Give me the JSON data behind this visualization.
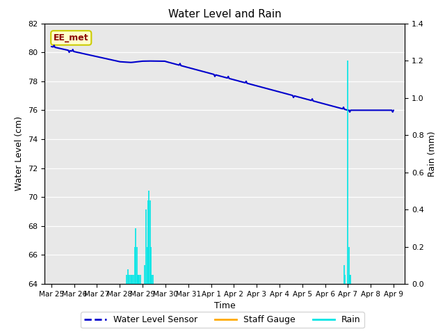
{
  "title": "Water Level and Rain",
  "xlabel": "Time",
  "ylabel_left": "Water Level (cm)",
  "ylabel_right": "Rain (mm)",
  "fig_bg_color": "#ffffff",
  "plot_bg_color": "#e8e8e8",
  "annotation_text": "EE_met",
  "annotation_bg": "#ffffcc",
  "annotation_border": "#cccc00",
  "annotation_text_color": "#8b0000",
  "water_level_color": "#0000cc",
  "staff_gauge_color": "#ffaa00",
  "rain_color": "#00e5e5",
  "ylim_left": [
    64,
    82
  ],
  "ylim_right": [
    0.0,
    1.4
  ],
  "yticks_left": [
    64,
    66,
    68,
    70,
    72,
    74,
    76,
    78,
    80,
    82
  ],
  "yticks_right": [
    0.0,
    0.2,
    0.4,
    0.6,
    0.8,
    1.0,
    1.2,
    1.4
  ],
  "x_tick_labels": [
    "Mar 25",
    "Mar 26",
    "Mar 27",
    "Mar 28",
    "Mar 29",
    "Mar 30",
    "Mar 31",
    "Apr 1",
    "Apr 2",
    "Apr 3",
    "Apr 4",
    "Apr 5",
    "Apr 6",
    "Apr 7",
    "Apr 8",
    "Apr 9"
  ],
  "legend_labels": [
    "Water Level Sensor",
    "Staff Gauge",
    "Rain"
  ],
  "legend_colors": [
    "#0000cc",
    "#ffaa00",
    "#00e5e5"
  ],
  "grid_color": "#ffffff",
  "wl_linewidth": 1.5,
  "rain_linewidth": 1.2
}
